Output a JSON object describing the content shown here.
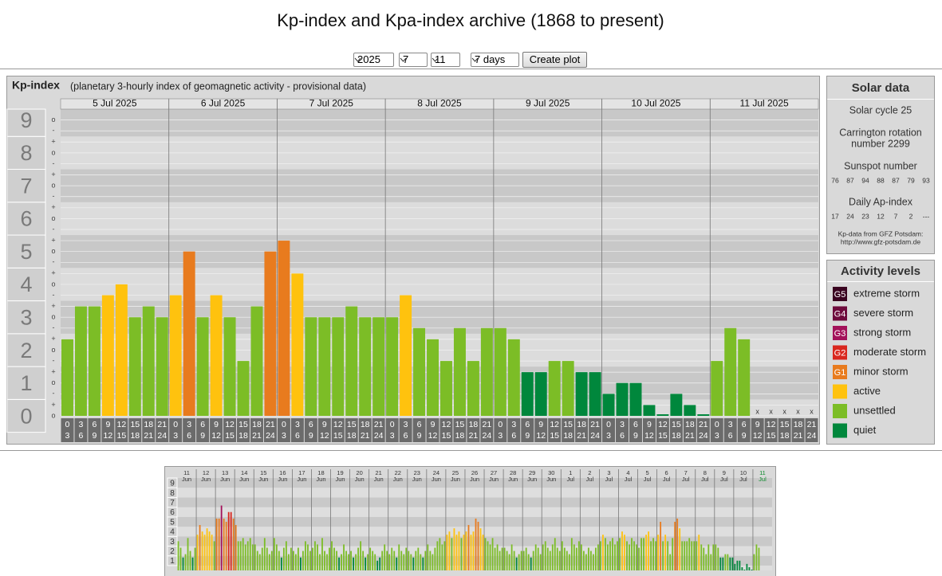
{
  "header": {
    "title": "Kp-index and Kpa-index archive (1868 to present)"
  },
  "controls": {
    "year": "2025",
    "month": "7",
    "day": "11",
    "span": "7 days",
    "button": "Create plot"
  },
  "chart_data": [
    {
      "type": "bar",
      "title": "Kp-index",
      "subtitle": "(planetary 3-hourly index of geomagnetic activity - provisional data)",
      "days": [
        "5 Jul 2025",
        "6 Jul 2025",
        "7 Jul 2025",
        "8 Jul 2025",
        "9 Jul 2025",
        "10 Jul 2025",
        "11 Jul 2025"
      ],
      "hours": [
        [
          "0",
          "3"
        ],
        [
          "3",
          "6"
        ],
        [
          "6",
          "9"
        ],
        [
          "9",
          "12"
        ],
        [
          "12",
          "15"
        ],
        [
          "15",
          "18"
        ],
        [
          "18",
          "21"
        ],
        [
          "21",
          "24"
        ]
      ],
      "values": [
        2.33,
        3.33,
        3.33,
        3.67,
        4,
        3,
        3.33,
        3,
        3.67,
        5,
        3,
        3.67,
        3,
        1.67,
        3.33,
        5,
        5.33,
        4.33,
        3,
        3,
        3,
        3.33,
        3,
        3,
        3,
        3.67,
        2.67,
        2.33,
        1.67,
        2.67,
        1.67,
        2.67,
        2.67,
        2.33,
        1.33,
        1.33,
        1.67,
        1.67,
        1.33,
        1.33,
        0.67,
        1,
        1,
        0.33,
        0,
        0.67,
        0.33,
        0,
        1.67,
        2.67,
        2.33,
        null,
        null,
        null,
        null,
        null
      ],
      "colors": [
        "#7cbd26",
        "#7cbd26",
        "#7cbd26",
        "#ffc20e",
        "#ffc20e",
        "#7cbd26",
        "#7cbd26",
        "#7cbd26",
        "#ffc20e",
        "#e87b1e",
        "#7cbd26",
        "#ffc20e",
        "#7cbd26",
        "#7cbd26",
        "#7cbd26",
        "#e87b1e",
        "#e87b1e",
        "#ffc20e",
        "#7cbd26",
        "#7cbd26",
        "#7cbd26",
        "#7cbd26",
        "#7cbd26",
        "#7cbd26",
        "#7cbd26",
        "#ffc20e",
        "#7cbd26",
        "#7cbd26",
        "#7cbd26",
        "#7cbd26",
        "#7cbd26",
        "#7cbd26",
        "#7cbd26",
        "#7cbd26",
        "#00873c",
        "#00873c",
        "#7cbd26",
        "#7cbd26",
        "#00873c",
        "#00873c",
        "#00873c",
        "#00873c",
        "#00873c",
        "#00873c",
        "#00873c",
        "#00873c",
        "#00873c",
        "#00873c",
        "#7cbd26",
        "#7cbd26",
        "#7cbd26",
        null,
        null,
        null,
        null,
        null
      ],
      "missing_label": "x",
      "ylim": [
        0,
        9.33
      ],
      "yticks": [
        0,
        1,
        2,
        3,
        4,
        5,
        6,
        7,
        8,
        9
      ],
      "minor_ticks": [
        {
          "value": 0,
          "label": "o"
        },
        {
          "value": 0.33,
          "label": "+"
        },
        {
          "value": 0.67,
          "label": "-"
        },
        {
          "value": 1,
          "label": "o"
        },
        {
          "value": 1.33,
          "label": "+"
        },
        {
          "value": 1.67,
          "label": "-"
        },
        {
          "value": 2,
          "label": "o"
        },
        {
          "value": 2.33,
          "label": "+"
        },
        {
          "value": 2.67,
          "label": "-"
        },
        {
          "value": 3,
          "label": "o"
        },
        {
          "value": 3.33,
          "label": "+"
        },
        {
          "value": 3.67,
          "label": "-"
        },
        {
          "value": 4,
          "label": "o"
        },
        {
          "value": 4.33,
          "label": "+"
        },
        {
          "value": 4.67,
          "label": "-"
        },
        {
          "value": 5,
          "label": "o"
        },
        {
          "value": 5.33,
          "label": "+"
        },
        {
          "value": 5.67,
          "label": "-"
        },
        {
          "value": 6,
          "label": "o"
        },
        {
          "value": 6.33,
          "label": "+"
        },
        {
          "value": 6.67,
          "label": "-"
        },
        {
          "value": 7,
          "label": "o"
        },
        {
          "value": 7.33,
          "label": "+"
        },
        {
          "value": 7.67,
          "label": "-"
        },
        {
          "value": 8,
          "label": "o"
        },
        {
          "value": 8.33,
          "label": "+"
        },
        {
          "value": 8.67,
          "label": "-"
        },
        {
          "value": 9,
          "label": "o"
        }
      ]
    },
    {
      "type": "bar",
      "days": [
        [
          "11",
          "Jun"
        ],
        [
          "12",
          "Jun"
        ],
        [
          "13",
          "Jun"
        ],
        [
          "14",
          "Jun"
        ],
        [
          "15",
          "Jun"
        ],
        [
          "16",
          "Jun"
        ],
        [
          "17",
          "Jun"
        ],
        [
          "18",
          "Jun"
        ],
        [
          "19",
          "Jun"
        ],
        [
          "20",
          "Jun"
        ],
        [
          "21",
          "Jun"
        ],
        [
          "22",
          "Jun"
        ],
        [
          "23",
          "Jun"
        ],
        [
          "24",
          "Jun"
        ],
        [
          "25",
          "Jun"
        ],
        [
          "26",
          "Jun"
        ],
        [
          "27",
          "Jun"
        ],
        [
          "28",
          "Jun"
        ],
        [
          "29",
          "Jun"
        ],
        [
          "30",
          "Jun"
        ],
        [
          "1",
          "Jul"
        ],
        [
          "2",
          "Jul"
        ],
        [
          "3",
          "Jul"
        ],
        [
          "4",
          "Jul"
        ],
        [
          "5",
          "Jul"
        ],
        [
          "6",
          "Jul"
        ],
        [
          "7",
          "Jul"
        ],
        [
          "8",
          "Jul"
        ],
        [
          "9",
          "Jul"
        ],
        [
          "10",
          "Jul"
        ],
        [
          "11",
          "Jul"
        ]
      ],
      "values": [
        3,
        2.33,
        1.33,
        1.67,
        3.33,
        2,
        1.33,
        2.33,
        3.67,
        4.67,
        4,
        3.67,
        4.33,
        4,
        3.67,
        3,
        5.33,
        5.33,
        6.67,
        5.33,
        5,
        6,
        6,
        5.33,
        4.67,
        3,
        3,
        3.33,
        2.67,
        3,
        3.33,
        2.67,
        2.67,
        2,
        1.67,
        2.33,
        3.33,
        2.33,
        1.67,
        2,
        3.33,
        2.67,
        2,
        1.33,
        2.33,
        3,
        1.67,
        2.33,
        2,
        1.67,
        2.33,
        1.33,
        2,
        3,
        2.67,
        2,
        2.33,
        3,
        2.67,
        1.67,
        3.33,
        2,
        1.67,
        2.33,
        3,
        2.33,
        2,
        1.33,
        1.67,
        2.67,
        2,
        1.67,
        2,
        1.33,
        1.67,
        2.33,
        3,
        2,
        1.33,
        1.67,
        2.33,
        2,
        1.67,
        1,
        1.33,
        2,
        2.67,
        2,
        1.67,
        2.33,
        2,
        1.33,
        2.67,
        2,
        1.67,
        2.33,
        2,
        1.67,
        1.33,
        2,
        2.33,
        1.67,
        1.33,
        2,
        2.67,
        2,
        1.67,
        2.33,
        3,
        3.33,
        2.67,
        3,
        3.67,
        4,
        3.33,
        4.33,
        3.67,
        4,
        3.33,
        3.67,
        4,
        4.67,
        3.67,
        4,
        5.33,
        5,
        4.33,
        3.67,
        3.33,
        3,
        2.67,
        3.33,
        2.33,
        2.67,
        2,
        2.33,
        2.33,
        2,
        1.67,
        2.67,
        2,
        1.33,
        1.67,
        2,
        2,
        2.33,
        1.67,
        1.33,
        2,
        2.67,
        2.33,
        1.67,
        2.67,
        3,
        2.33,
        2,
        2.67,
        3.33,
        2.33,
        2,
        3,
        2.33,
        2,
        1.67,
        3.33,
        2.67,
        2.33,
        3,
        2.67,
        2,
        1.67,
        2.33,
        2,
        1.67,
        2.33,
        2.67,
        3,
        3.67,
        3.33,
        2.67,
        3,
        3.33,
        2.67,
        3,
        3.33,
        4,
        3.67,
        3,
        2.67,
        3.33,
        3,
        2.67,
        2.33,
        3.33,
        3.33,
        3.67,
        4,
        3,
        3.33,
        3,
        3.67,
        5,
        3,
        3.67,
        3,
        1.67,
        3.33,
        5,
        5.33,
        4.33,
        3,
        3,
        3,
        3.33,
        3,
        3,
        3,
        3.67,
        2.67,
        2.33,
        1.67,
        2.67,
        1.67,
        2.67,
        2.67,
        2.33,
        1.33,
        1.33,
        1.67,
        1.67,
        1.33,
        1.33,
        0.67,
        1,
        1,
        0.33,
        0,
        0.67,
        0.33,
        0,
        1.67,
        2.67,
        2.33,
        null,
        null,
        null,
        null,
        null
      ],
      "colors": [
        "#7cbd26",
        "#7cbd26",
        "#00873c",
        "#7cbd26",
        "#7cbd26",
        "#7cbd26",
        "#00873c",
        "#7cbd26",
        "#ffc20e",
        "#e87b1e",
        "#ffc20e",
        "#ffc20e",
        "#ffc20e",
        "#ffc20e",
        "#ffc20e",
        "#7cbd26",
        "#e87b1e",
        "#e87b1e",
        "#a3115a",
        "#e87b1e",
        "#e87b1e",
        "#d9271e",
        "#d9271e",
        "#e87b1e",
        "#e87b1e",
        "#7cbd26",
        "#7cbd26",
        "#7cbd26",
        "#7cbd26",
        "#7cbd26",
        "#7cbd26",
        "#7cbd26",
        "#7cbd26",
        "#7cbd26",
        "#7cbd26",
        "#7cbd26",
        "#7cbd26",
        "#7cbd26",
        "#7cbd26",
        "#7cbd26",
        "#7cbd26",
        "#7cbd26",
        "#7cbd26",
        "#00873c",
        "#7cbd26",
        "#7cbd26",
        "#7cbd26",
        "#7cbd26",
        "#7cbd26",
        "#7cbd26",
        "#7cbd26",
        "#00873c",
        "#7cbd26",
        "#7cbd26",
        "#7cbd26",
        "#7cbd26",
        "#7cbd26",
        "#7cbd26",
        "#7cbd26",
        "#7cbd26",
        "#7cbd26",
        "#7cbd26",
        "#7cbd26",
        "#7cbd26",
        "#7cbd26",
        "#7cbd26",
        "#7cbd26",
        "#00873c",
        "#7cbd26",
        "#7cbd26",
        "#7cbd26",
        "#7cbd26",
        "#7cbd26",
        "#00873c",
        "#7cbd26",
        "#7cbd26",
        "#7cbd26",
        "#7cbd26",
        "#00873c",
        "#7cbd26",
        "#7cbd26",
        "#7cbd26",
        "#7cbd26",
        "#00873c",
        "#00873c",
        "#7cbd26",
        "#7cbd26",
        "#7cbd26",
        "#7cbd26",
        "#7cbd26",
        "#7cbd26",
        "#00873c",
        "#7cbd26",
        "#7cbd26",
        "#7cbd26",
        "#7cbd26",
        "#7cbd26",
        "#7cbd26",
        "#00873c",
        "#7cbd26",
        "#7cbd26",
        "#7cbd26",
        "#00873c",
        "#7cbd26",
        "#7cbd26",
        "#7cbd26",
        "#7cbd26",
        "#7cbd26",
        "#7cbd26",
        "#7cbd26",
        "#7cbd26",
        "#7cbd26",
        "#ffc20e",
        "#ffc20e",
        "#7cbd26",
        "#ffc20e",
        "#ffc20e",
        "#ffc20e",
        "#7cbd26",
        "#ffc20e",
        "#ffc20e",
        "#e87b1e",
        "#ffc20e",
        "#ffc20e",
        "#e87b1e",
        "#e87b1e",
        "#ffc20e",
        "#ffc20e",
        "#7cbd26",
        "#7cbd26",
        "#7cbd26",
        "#7cbd26",
        "#7cbd26",
        "#7cbd26",
        "#7cbd26",
        "#7cbd26",
        "#7cbd26",
        "#7cbd26",
        "#7cbd26",
        "#7cbd26",
        "#7cbd26",
        "#00873c",
        "#7cbd26",
        "#7cbd26",
        "#7cbd26",
        "#7cbd26",
        "#7cbd26",
        "#00873c",
        "#7cbd26",
        "#7cbd26",
        "#7cbd26",
        "#7cbd26",
        "#7cbd26",
        "#7cbd26",
        "#7cbd26",
        "#7cbd26",
        "#7cbd26",
        "#7cbd26",
        "#7cbd26",
        "#7cbd26",
        "#7cbd26",
        "#7cbd26",
        "#7cbd26",
        "#7cbd26",
        "#7cbd26",
        "#7cbd26",
        "#7cbd26",
        "#7cbd26",
        "#7cbd26",
        "#7cbd26",
        "#7cbd26",
        "#7cbd26",
        "#7cbd26",
        "#7cbd26",
        "#7cbd26",
        "#7cbd26",
        "#7cbd26",
        "#ffc20e",
        "#7cbd26",
        "#7cbd26",
        "#7cbd26",
        "#7cbd26",
        "#7cbd26",
        "#7cbd26",
        "#7cbd26",
        "#ffc20e",
        "#ffc20e",
        "#7cbd26",
        "#7cbd26",
        "#7cbd26",
        "#7cbd26",
        "#7cbd26",
        "#7cbd26",
        "#7cbd26",
        "#7cbd26",
        "#ffc20e",
        "#ffc20e",
        "#7cbd26",
        "#7cbd26",
        "#7cbd26",
        "#ffc20e",
        "#e87b1e",
        "#7cbd26",
        "#ffc20e",
        "#7cbd26",
        "#7cbd26",
        "#7cbd26",
        "#e87b1e",
        "#e87b1e",
        "#ffc20e",
        "#7cbd26",
        "#7cbd26",
        "#7cbd26",
        "#7cbd26",
        "#7cbd26",
        "#7cbd26",
        "#7cbd26",
        "#ffc20e",
        "#7cbd26",
        "#7cbd26",
        "#7cbd26",
        "#7cbd26",
        "#7cbd26",
        "#7cbd26",
        "#7cbd26",
        "#7cbd26",
        "#00873c",
        "#00873c",
        "#7cbd26",
        "#7cbd26",
        "#00873c",
        "#00873c",
        "#00873c",
        "#00873c",
        "#00873c",
        "#00873c",
        "#00873c",
        "#00873c",
        "#00873c",
        "#00873c",
        "#7cbd26",
        "#7cbd26",
        "#7cbd26",
        null,
        null,
        null,
        null,
        null
      ],
      "ylim": [
        0,
        9.5
      ],
      "yticks": [
        1,
        2,
        3,
        4,
        5,
        6,
        7,
        8,
        9
      ]
    }
  ],
  "solar_data": {
    "title": "Solar data",
    "cycle": "Solar cycle 25",
    "rotation": [
      "Carrington rotation",
      "number 2299"
    ],
    "sunspot_title": "Sunspot number",
    "sunspot": [
      76,
      87,
      94,
      88,
      87,
      79,
      93
    ],
    "ap_title": "Daily Ap-index",
    "ap": [
      17,
      24,
      23,
      12,
      7,
      2,
      "---"
    ],
    "source": [
      "Kp-data from  GFZ Potsdam:",
      "http://www.gfz-potsdam.de"
    ]
  },
  "activity_levels": {
    "title": "Activity levels",
    "items": [
      {
        "badge": "G5",
        "label": "extreme storm",
        "color": "#3a0420"
      },
      {
        "badge": "G4",
        "label": "severe storm",
        "color": "#6e0a3c"
      },
      {
        "badge": "G3",
        "label": "strong storm",
        "color": "#a3115a"
      },
      {
        "badge": "G2",
        "label": "moderate storm",
        "color": "#d9271e"
      },
      {
        "badge": "G1",
        "label": "minor storm",
        "color": "#e87b1e"
      },
      {
        "label": "active",
        "color": "#ffc20e"
      },
      {
        "label": "unsettled",
        "color": "#7cbd26"
      },
      {
        "label": "quiet",
        "color": "#00873c"
      }
    ]
  }
}
